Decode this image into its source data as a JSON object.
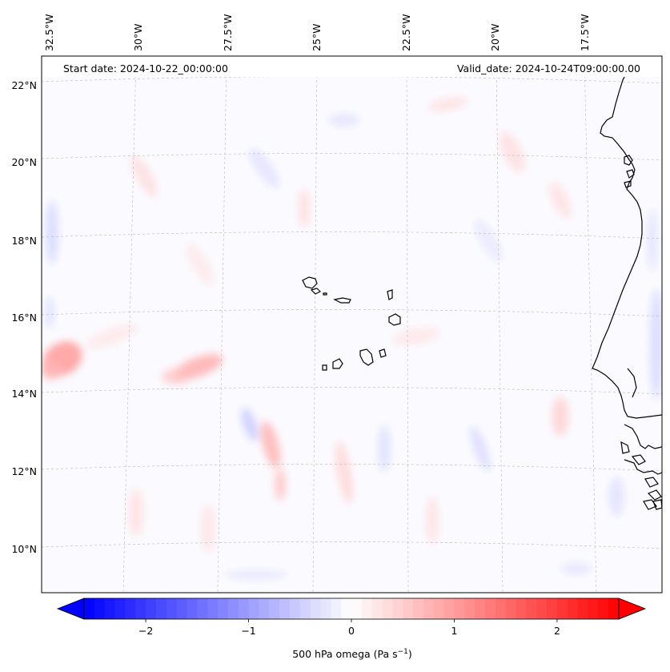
{
  "map": {
    "start_label": "Start date: 2024-10-22_00:00:00",
    "valid_label": "Valid_date: 2024-10-24T09:00:00.00",
    "lon_ticks": [
      "32.5°W",
      "30°W",
      "27.5°W",
      "25°W",
      "22.5°W",
      "20°W",
      "17.5°W"
    ],
    "lat_ticks": [
      "22°N",
      "20°N",
      "18°N",
      "16°N",
      "14°N",
      "12°N",
      "10°N"
    ],
    "coastline_color": "#000000",
    "gridline_color": "#b0b0b0"
  },
  "colorbar": {
    "title": "500 hPa omega (Pa s",
    "title_sup": "−1",
    "title_end": ")",
    "ticks": [
      "−2",
      "−1",
      "0",
      "1",
      "2"
    ],
    "tick_values": [
      -2,
      -1,
      0,
      1,
      2
    ],
    "range": [
      -2.6,
      2.6
    ],
    "colormap": "bwr",
    "low_color": "#0000ff",
    "mid_color": "#ffffff",
    "high_color": "#ff0000",
    "extend": "both"
  }
}
